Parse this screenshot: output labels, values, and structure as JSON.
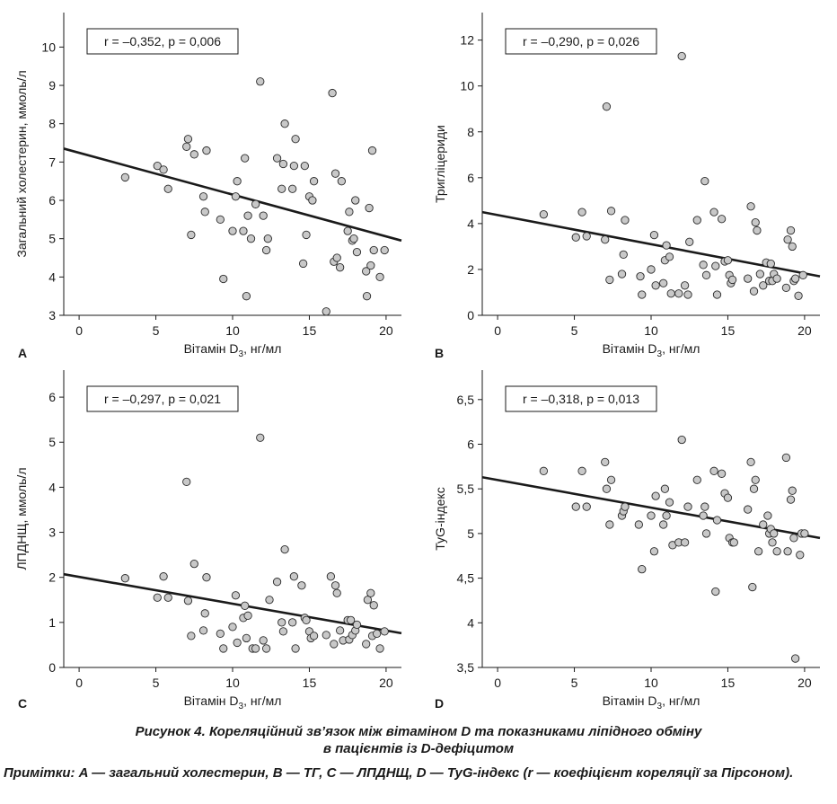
{
  "chart_data": [
    {
      "panel": "A",
      "type": "scatter",
      "stat": "r = –0,352, p = 0,006",
      "xlabel": "Вітамін D",
      "xlabel_sub": "3",
      "xlabel_unit": ", нг/мл",
      "ylabel": "Загальний холестерин, ммоль/л",
      "xlim": [
        -1,
        21
      ],
      "ylim": [
        3,
        10.9
      ],
      "xticks": [
        0,
        5,
        10,
        15,
        20
      ],
      "xtick_labels": [
        "0",
        "5",
        "10",
        "15",
        "20"
      ],
      "yticks": [
        3,
        4,
        5,
        6,
        7,
        8,
        9,
        10
      ],
      "ytick_labels": [
        "3",
        "4",
        "5",
        "6",
        "7",
        "8",
        "9",
        "10"
      ],
      "trend": [
        [
          -1,
          7.35
        ],
        [
          21,
          4.95
        ]
      ],
      "points": [
        [
          3.0,
          6.6
        ],
        [
          5.1,
          6.9
        ],
        [
          5.5,
          6.8
        ],
        [
          5.8,
          6.3
        ],
        [
          7.0,
          7.4
        ],
        [
          7.1,
          7.6
        ],
        [
          7.3,
          5.1
        ],
        [
          7.5,
          7.2
        ],
        [
          8.1,
          6.1
        ],
        [
          8.2,
          5.7
        ],
        [
          8.3,
          7.3
        ],
        [
          9.2,
          5.5
        ],
        [
          9.4,
          3.95
        ],
        [
          10.0,
          5.2
        ],
        [
          10.2,
          6.1
        ],
        [
          10.3,
          6.5
        ],
        [
          10.7,
          5.2
        ],
        [
          10.8,
          7.1
        ],
        [
          10.9,
          3.5
        ],
        [
          11.0,
          5.6
        ],
        [
          11.2,
          5.0
        ],
        [
          11.5,
          5.9
        ],
        [
          11.8,
          9.1
        ],
        [
          12.0,
          5.6
        ],
        [
          12.2,
          4.7
        ],
        [
          12.3,
          5.0
        ],
        [
          12.9,
          7.1
        ],
        [
          13.2,
          6.3
        ],
        [
          13.3,
          6.95
        ],
        [
          13.4,
          8.0
        ],
        [
          13.9,
          6.3
        ],
        [
          14.0,
          6.9
        ],
        [
          14.1,
          7.6
        ],
        [
          14.6,
          4.35
        ],
        [
          14.7,
          6.9
        ],
        [
          14.8,
          5.1
        ],
        [
          15.0,
          6.1
        ],
        [
          15.2,
          6.0
        ],
        [
          15.3,
          6.5
        ],
        [
          16.1,
          3.1
        ],
        [
          16.5,
          8.8
        ],
        [
          16.6,
          4.4
        ],
        [
          16.7,
          6.7
        ],
        [
          16.8,
          4.5
        ],
        [
          17.0,
          4.25
        ],
        [
          17.1,
          6.5
        ],
        [
          17.5,
          5.2
        ],
        [
          17.6,
          5.7
        ],
        [
          17.8,
          4.95
        ],
        [
          17.9,
          5.0
        ],
        [
          18.0,
          6.0
        ],
        [
          18.1,
          4.65
        ],
        [
          18.7,
          4.15
        ],
        [
          18.75,
          3.5
        ],
        [
          18.9,
          5.8
        ],
        [
          19.0,
          4.3
        ],
        [
          19.1,
          7.3
        ],
        [
          19.2,
          4.7
        ],
        [
          19.6,
          4.0
        ],
        [
          19.9,
          4.7
        ]
      ]
    },
    {
      "panel": "B",
      "type": "scatter",
      "stat": "r = –0,290, p = 0,026",
      "xlabel": "Вітамін D",
      "xlabel_sub": "3",
      "xlabel_unit": ", нг/мл",
      "ylabel": "Тригліцериди",
      "xlim": [
        -1,
        21
      ],
      "ylim": [
        0,
        13.2
      ],
      "xticks": [
        0,
        5,
        10,
        15,
        20
      ],
      "xtick_labels": [
        "0",
        "5",
        "10",
        "15",
        "20"
      ],
      "yticks": [
        0,
        2,
        4,
        6,
        8,
        10,
        12
      ],
      "ytick_labels": [
        "0",
        "2",
        "4",
        "6",
        "8",
        "10",
        "12"
      ],
      "trend": [
        [
          -1,
          4.5
        ],
        [
          21,
          1.7
        ]
      ],
      "points": [
        [
          3.0,
          4.4
        ],
        [
          5.1,
          3.4
        ],
        [
          5.5,
          4.5
        ],
        [
          5.8,
          3.45
        ],
        [
          7.0,
          3.3
        ],
        [
          7.1,
          9.1
        ],
        [
          7.3,
          1.55
        ],
        [
          7.4,
          4.55
        ],
        [
          8.1,
          1.8
        ],
        [
          8.2,
          2.65
        ],
        [
          8.3,
          4.15
        ],
        [
          9.3,
          1.7
        ],
        [
          9.4,
          0.9
        ],
        [
          10.0,
          2.0
        ],
        [
          10.2,
          3.5
        ],
        [
          10.3,
          1.3
        ],
        [
          10.8,
          1.4
        ],
        [
          10.9,
          2.4
        ],
        [
          11.0,
          3.05
        ],
        [
          11.2,
          2.55
        ],
        [
          11.3,
          0.95
        ],
        [
          11.8,
          0.95
        ],
        [
          12.0,
          11.3
        ],
        [
          12.2,
          1.3
        ],
        [
          12.4,
          0.9
        ],
        [
          12.5,
          3.2
        ],
        [
          13.0,
          4.15
        ],
        [
          13.4,
          2.2
        ],
        [
          13.5,
          5.85
        ],
        [
          13.6,
          1.75
        ],
        [
          14.1,
          4.5
        ],
        [
          14.2,
          2.15
        ],
        [
          14.3,
          0.9
        ],
        [
          14.6,
          4.2
        ],
        [
          14.8,
          2.35
        ],
        [
          15.0,
          2.4
        ],
        [
          15.1,
          1.75
        ],
        [
          15.2,
          1.4
        ],
        [
          15.3,
          1.55
        ],
        [
          16.3,
          1.6
        ],
        [
          16.5,
          4.75
        ],
        [
          16.7,
          1.05
        ],
        [
          16.8,
          4.05
        ],
        [
          16.9,
          3.7
        ],
        [
          17.1,
          1.8
        ],
        [
          17.3,
          1.3
        ],
        [
          17.5,
          2.3
        ],
        [
          17.7,
          1.5
        ],
        [
          17.8,
          2.25
        ],
        [
          17.9,
          1.5
        ],
        [
          18.0,
          1.8
        ],
        [
          18.2,
          1.6
        ],
        [
          18.8,
          1.2
        ],
        [
          18.9,
          3.3
        ],
        [
          19.1,
          3.7
        ],
        [
          19.2,
          3.0
        ],
        [
          19.3,
          1.5
        ],
        [
          19.4,
          1.6
        ],
        [
          19.6,
          0.85
        ],
        [
          19.9,
          1.75
        ]
      ]
    },
    {
      "panel": "C",
      "type": "scatter",
      "stat": "r = –0,297, p = 0,021",
      "xlabel": "Вітамін D",
      "xlabel_sub": "3",
      "xlabel_unit": ", нг/мл",
      "ylabel": "ЛПДНЩ, ммоль/л",
      "xlim": [
        -1,
        21
      ],
      "ylim": [
        0,
        6.6
      ],
      "xticks": [
        0,
        5,
        10,
        15,
        20
      ],
      "xtick_labels": [
        "0",
        "5",
        "10",
        "15",
        "20"
      ],
      "yticks": [
        0,
        1,
        2,
        3,
        4,
        5,
        6
      ],
      "ytick_labels": [
        "0",
        "1",
        "2",
        "3",
        "4",
        "5",
        "6"
      ],
      "trend": [
        [
          -1,
          2.07
        ],
        [
          21,
          0.76
        ]
      ],
      "points": [
        [
          3.0,
          1.98
        ],
        [
          5.1,
          1.55
        ],
        [
          5.5,
          2.02
        ],
        [
          5.8,
          1.55
        ],
        [
          7.0,
          4.12
        ],
        [
          7.1,
          1.48
        ],
        [
          7.3,
          0.7
        ],
        [
          7.5,
          2.3
        ],
        [
          8.1,
          0.82
        ],
        [
          8.2,
          1.2
        ],
        [
          8.3,
          2.0
        ],
        [
          9.2,
          0.75
        ],
        [
          9.4,
          0.42
        ],
        [
          10.0,
          0.9
        ],
        [
          10.2,
          1.6
        ],
        [
          10.3,
          0.55
        ],
        [
          10.7,
          1.1
        ],
        [
          10.8,
          1.37
        ],
        [
          10.9,
          0.65
        ],
        [
          11.0,
          1.15
        ],
        [
          11.3,
          0.42
        ],
        [
          11.5,
          0.42
        ],
        [
          11.8,
          5.1
        ],
        [
          12.0,
          0.6
        ],
        [
          12.2,
          0.42
        ],
        [
          12.4,
          1.5
        ],
        [
          12.9,
          1.9
        ],
        [
          13.2,
          1.0
        ],
        [
          13.3,
          0.8
        ],
        [
          13.4,
          2.62
        ],
        [
          13.9,
          1.0
        ],
        [
          14.0,
          2.02
        ],
        [
          14.1,
          0.42
        ],
        [
          14.5,
          1.82
        ],
        [
          14.7,
          1.1
        ],
        [
          14.8,
          1.05
        ],
        [
          15.0,
          0.8
        ],
        [
          15.1,
          0.65
        ],
        [
          15.3,
          0.7
        ],
        [
          16.1,
          0.72
        ],
        [
          16.4,
          2.02
        ],
        [
          16.6,
          0.52
        ],
        [
          16.7,
          1.82
        ],
        [
          16.8,
          1.65
        ],
        [
          17.0,
          0.82
        ],
        [
          17.2,
          0.6
        ],
        [
          17.5,
          1.05
        ],
        [
          17.6,
          0.62
        ],
        [
          17.7,
          1.05
        ],
        [
          17.8,
          0.72
        ],
        [
          18.0,
          0.82
        ],
        [
          18.1,
          0.95
        ],
        [
          18.7,
          0.52
        ],
        [
          18.8,
          1.5
        ],
        [
          19.0,
          1.65
        ],
        [
          19.1,
          0.7
        ],
        [
          19.2,
          1.38
        ],
        [
          19.4,
          0.75
        ],
        [
          19.6,
          0.42
        ],
        [
          19.9,
          0.8
        ]
      ]
    },
    {
      "panel": "D",
      "type": "scatter",
      "stat": "r = –0,318, p = 0,013",
      "xlabel": "Вітамін D",
      "xlabel_sub": "3",
      "xlabel_unit": ", нг/мл",
      "ylabel": "TyG-індекс",
      "xlim": [
        -1,
        21
      ],
      "ylim": [
        3.5,
        6.83
      ],
      "xticks": [
        0,
        5,
        10,
        15,
        20
      ],
      "xtick_labels": [
        "0",
        "5",
        "10",
        "15",
        "20"
      ],
      "yticks": [
        3.5,
        4,
        4.5,
        5,
        5.5,
        6,
        6.5
      ],
      "ytick_labels": [
        "3,5",
        "4",
        "4,5",
        "5",
        "5,5",
        "6",
        "6,5"
      ],
      "trend": [
        [
          -1,
          5.63
        ],
        [
          21,
          4.95
        ]
      ],
      "points": [
        [
          3.0,
          5.7
        ],
        [
          5.1,
          5.3
        ],
        [
          5.5,
          5.7
        ],
        [
          5.8,
          5.3
        ],
        [
          7.0,
          5.8
        ],
        [
          7.1,
          5.5
        ],
        [
          7.3,
          5.1
        ],
        [
          7.4,
          5.6
        ],
        [
          8.1,
          5.2
        ],
        [
          8.2,
          5.25
        ],
        [
          8.3,
          5.3
        ],
        [
          9.2,
          5.1
        ],
        [
          9.4,
          4.6
        ],
        [
          10.0,
          5.2
        ],
        [
          10.2,
          4.8
        ],
        [
          10.3,
          5.42
        ],
        [
          10.8,
          5.1
        ],
        [
          10.9,
          5.5
        ],
        [
          11.0,
          5.2
        ],
        [
          11.2,
          5.35
        ],
        [
          11.4,
          4.87
        ],
        [
          11.8,
          4.9
        ],
        [
          12.0,
          6.05
        ],
        [
          12.2,
          4.9
        ],
        [
          12.4,
          5.3
        ],
        [
          13.0,
          5.6
        ],
        [
          13.4,
          5.2
        ],
        [
          13.5,
          5.3
        ],
        [
          13.6,
          5.0
        ],
        [
          14.1,
          5.7
        ],
        [
          14.2,
          4.35
        ],
        [
          14.3,
          5.15
        ],
        [
          14.6,
          5.67
        ],
        [
          14.8,
          5.45
        ],
        [
          15.0,
          5.4
        ],
        [
          15.1,
          4.95
        ],
        [
          15.3,
          4.9
        ],
        [
          15.4,
          4.9
        ],
        [
          16.3,
          5.27
        ],
        [
          16.5,
          5.8
        ],
        [
          16.6,
          4.4
        ],
        [
          16.7,
          5.5
        ],
        [
          16.8,
          5.6
        ],
        [
          17.0,
          4.8
        ],
        [
          17.3,
          5.1
        ],
        [
          17.6,
          5.2
        ],
        [
          17.7,
          5.0
        ],
        [
          17.8,
          5.05
        ],
        [
          17.9,
          4.9
        ],
        [
          18.0,
          5.0
        ],
        [
          18.2,
          4.8
        ],
        [
          18.8,
          5.85
        ],
        [
          18.9,
          4.8
        ],
        [
          19.1,
          5.38
        ],
        [
          19.2,
          5.48
        ],
        [
          19.3,
          4.95
        ],
        [
          19.4,
          3.6
        ],
        [
          19.7,
          4.76
        ],
        [
          19.8,
          5.0
        ],
        [
          20.0,
          5.0
        ]
      ]
    }
  ],
  "caption": {
    "line1": "Рисунок 4. Кореляційний зв’язок між вітаміном D та показниками ліпідного обміну",
    "line2": "в пацієнтів із D-дефіцитом",
    "note": "Примітки: A — загальний холестерин, B — ТГ, C — ЛПДНЩ, D — TyG-індекс (r — коефіцієнт кореляції за Пірсоном)."
  },
  "colors": {
    "point_fill": "#c8c8c8",
    "point_stroke": "#2a2a2a",
    "axis": "#1a1a1a",
    "trend": "#1a1a1a"
  }
}
